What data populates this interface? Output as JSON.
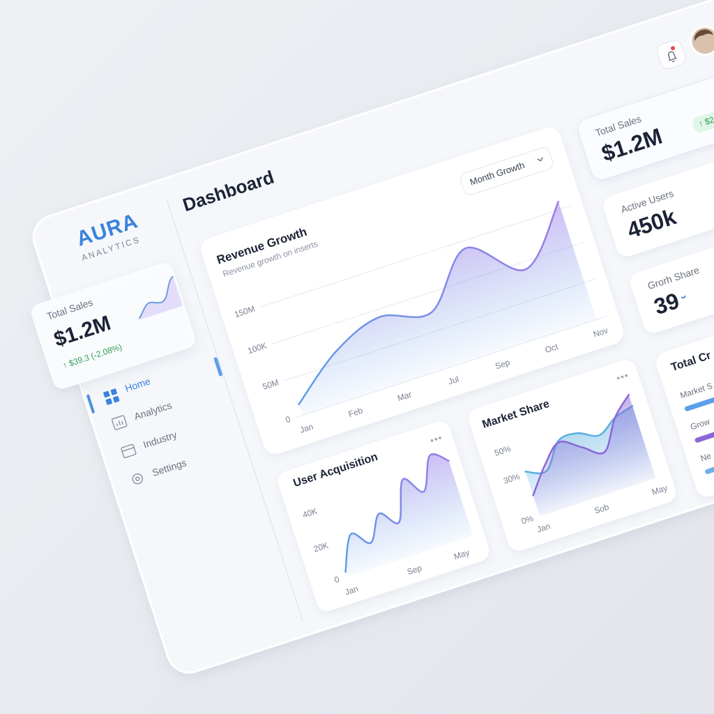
{
  "logo": {
    "name": "AURA",
    "tagline": "ANALYTICS"
  },
  "summary_card": {
    "label": "Total Sales",
    "value": "$1.2M",
    "change": "↑ $39.3 (-2.08%)"
  },
  "nav": [
    "Home",
    "Analytics",
    "Industry",
    "Settings"
  ],
  "header": {
    "title": "Dashboard"
  },
  "revenue_chart": {
    "type": "area",
    "title": "Revenue Growth",
    "subtitle": "Revenue growth on inserts",
    "filter": "Month Growth",
    "categories": [
      "Jan",
      "Feb",
      "Mar",
      "Jul",
      "Sep",
      "Oct",
      "Nov"
    ],
    "values": [
      15,
      65,
      90,
      75,
      140,
      90,
      160
    ],
    "colors": [
      "#5b9fe8",
      "#9d7ae8"
    ],
    "ylim": [
      0,
      180
    ],
    "yticks": [
      0,
      {
        "value": 50,
        "label": "50M"
      },
      {
        "value": 100,
        "label": "100K"
      },
      {
        "value": 150,
        "label": "150M"
      }
    ],
    "grid": true
  },
  "user_chart": {
    "type": "area",
    "title": "User Acquisition",
    "categories": [
      "Jan",
      null,
      null,
      null,
      "Sep",
      null,
      null,
      "May",
      null
    ],
    "values": [
      3,
      22,
      14,
      28,
      20,
      42,
      32,
      50,
      44
    ],
    "colors": [
      "#5b9fe8",
      "#9d7ae8"
    ],
    "ylim": [
      0,
      50
    ],
    "yticks": [
      0,
      {
        "value": 20,
        "label": "20K"
      },
      {
        "value": 40,
        "label": "40K"
      }
    ],
    "grid": false
  },
  "market_chart": {
    "type": "area",
    "title": "Market Share",
    "categories": [
      "Jan",
      null,
      null,
      "Sob",
      null,
      null,
      "May"
    ],
    "series": [
      {
        "color": "#5aaee0",
        "values": [
          32,
          28,
          45,
          46,
          40,
          48,
          52
        ]
      },
      {
        "color": "#8a66d8",
        "values": [
          15,
          32,
          44,
          36,
          28,
          48,
          60
        ]
      }
    ],
    "ylim": [
      0,
      60
    ],
    "yticks": [
      {
        "value": 0,
        "label": "0%"
      },
      {
        "value": 30,
        "label": "30%"
      },
      {
        "value": 50,
        "label": "50%"
      }
    ],
    "grid": false
  },
  "stats": [
    {
      "label": "Total Sales",
      "value": "$1.2M",
      "change": "↑ $2"
    },
    {
      "label": "Active Users",
      "value": "450k"
    },
    {
      "label": "Grorh Share",
      "value": "39"
    }
  ],
  "total_card": {
    "title": "Total Cr",
    "rows": [
      "Market S",
      "Grow",
      "Ne"
    ]
  }
}
